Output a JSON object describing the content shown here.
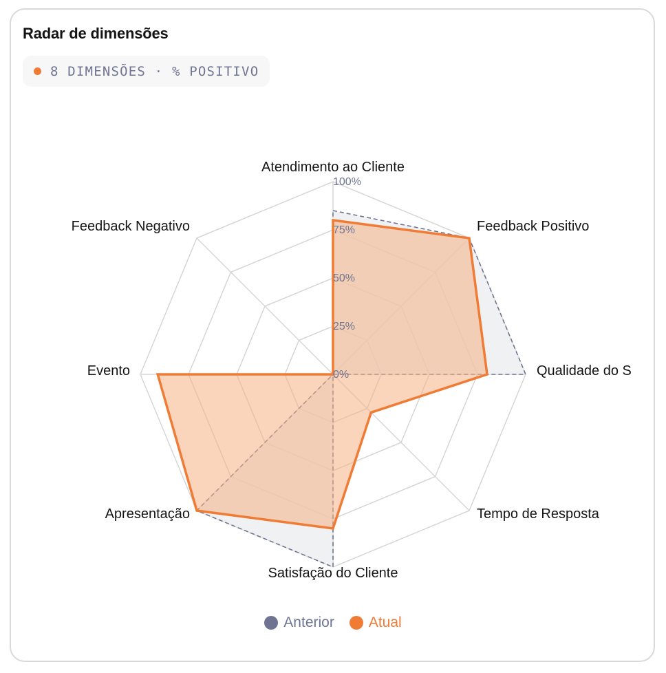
{
  "card": {
    "title": "Radar de dimensões",
    "pill_text": "8 DIMENSÕES · % POSITIVO"
  },
  "colors": {
    "accent": "#ef7b35",
    "previous": "#6e7491",
    "grid": "#d6d6d6",
    "previous_fill": "#e8eaed",
    "current_fill": "#f5b083"
  },
  "chart_data": {
    "type": "radar",
    "title": "",
    "axes": [
      "Atendimento ao Cliente",
      "Feedback Positivo",
      "Qualidade do S",
      "Tempo de Resposta",
      "Satisfação do Cliente",
      "Apresentação",
      "Evento",
      "Feedback Negativo"
    ],
    "range": [
      0,
      100
    ],
    "ticks": [
      "0%",
      "25%",
      "50%",
      "75%",
      "100%"
    ],
    "tick_values": [
      0,
      25,
      50,
      75,
      100
    ],
    "series": [
      {
        "name": "Anterior",
        "values": [
          85,
          100,
          100,
          0,
          100,
          100,
          0,
          0
        ]
      },
      {
        "name": "Atual",
        "values": [
          80,
          100,
          80,
          28,
          80,
          100,
          91,
          0
        ]
      }
    ],
    "legend": "bottom-center",
    "grid": true
  }
}
